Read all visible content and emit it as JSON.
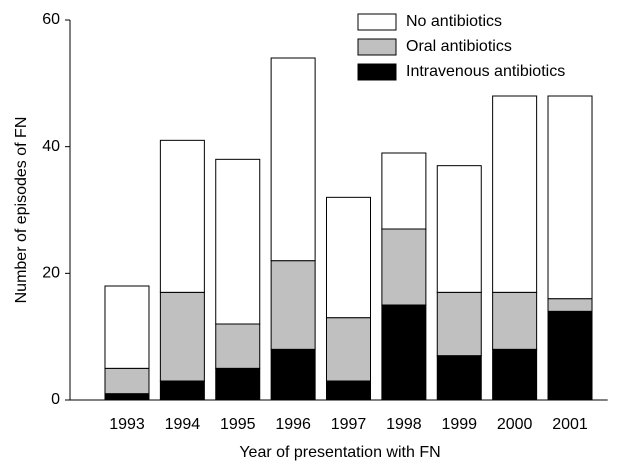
{
  "chart_data": {
    "type": "stacked_bar",
    "x_label": "Year of presentation with FN",
    "y_label": "Number of episodes of FN",
    "categories": [
      "1993",
      "1994",
      "1995",
      "1996",
      "1997",
      "1998",
      "1999",
      "2000",
      "2001"
    ],
    "series": [
      {
        "name": "No antibiotics",
        "color": "#ffffff",
        "values": [
          13,
          24,
          26,
          32,
          19,
          12,
          20,
          31,
          32
        ]
      },
      {
        "name": "Oral antibiotics",
        "color": "#c0c0c0",
        "values": [
          4,
          14,
          7,
          14,
          10,
          12,
          10,
          9,
          2
        ]
      },
      {
        "name": "Intravenous antibiotics",
        "color": "#000000",
        "values": [
          1,
          3,
          5,
          8,
          3,
          15,
          7,
          8,
          14
        ]
      }
    ],
    "ylim": [
      0,
      60
    ],
    "yticks": [
      0,
      20,
      40,
      60
    ],
    "legend": "upper right"
  }
}
